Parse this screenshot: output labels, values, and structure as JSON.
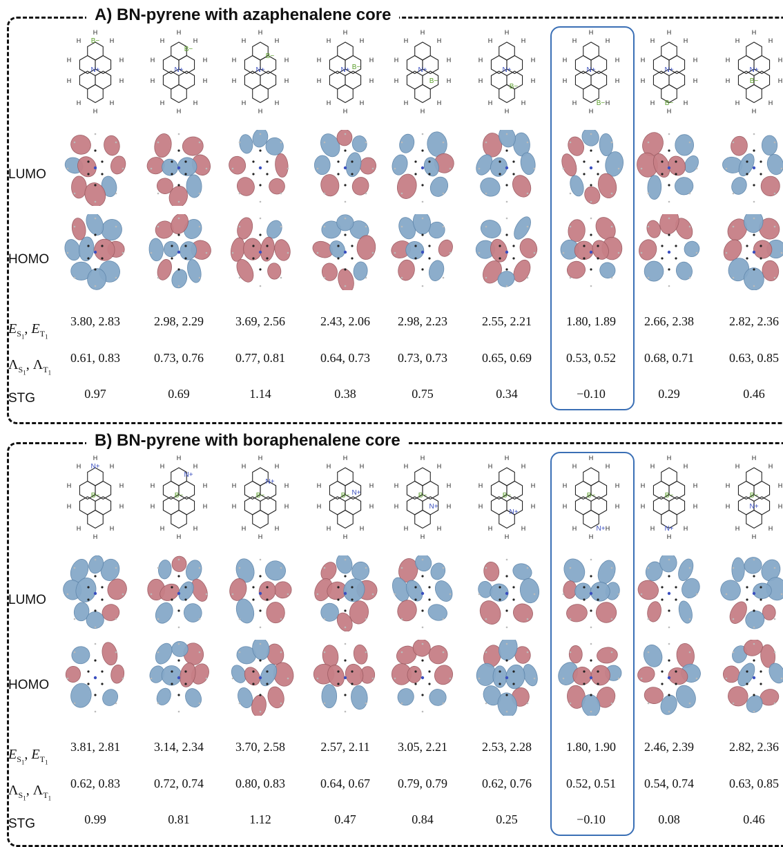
{
  "panels": [
    {
      "title": "A) BN-pyrene with azaphenalene core",
      "row_labels": {
        "lumo": "LUMO",
        "homo": "HOMO",
        "energy": "E",
        "energy_s": "S",
        "energy_t": "T",
        "lambda": "Λ",
        "lambda_s": "S",
        "lambda_t": "T",
        "stg": "STG",
        "sub1": "1"
      },
      "charges": {
        "N": "N",
        "B": "B",
        "plus": "+",
        "minus": "−",
        "H": "H"
      },
      "columns": [
        {
          "energies": "3.80, 2.83",
          "lambdas": "0.61, 0.83",
          "stg": "0.97"
        },
        {
          "energies": "2.98, 2.29",
          "lambdas": "0.73, 0.76",
          "stg": "0.69"
        },
        {
          "energies": "3.69, 2.56",
          "lambdas": "0.77, 0.81",
          "stg": "1.14"
        },
        {
          "energies": "2.43, 2.06",
          "lambdas": "0.64, 0.73",
          "stg": "0.38"
        },
        {
          "energies": "2.98, 2.23",
          "lambdas": "0.73, 0.73",
          "stg": "0.75"
        },
        {
          "energies": "2.55, 2.21",
          "lambdas": "0.65, 0.69",
          "stg": "0.34"
        },
        {
          "energies": "1.80, 1.89",
          "lambdas": "0.53, 0.52",
          "stg": "−0.10"
        },
        {
          "energies": "2.66, 2.38",
          "lambdas": "0.68, 0.71",
          "stg": "0.29"
        },
        {
          "energies": "2.82, 2.36",
          "lambdas": "0.63, 0.85",
          "stg": "0.46"
        }
      ]
    },
    {
      "title": "B) BN-pyrene with boraphenalene core",
      "row_labels": {
        "lumo": "LUMO",
        "homo": "HOMO",
        "energy": "E",
        "energy_s": "S",
        "energy_t": "T",
        "lambda": "Λ",
        "lambda_s": "S",
        "lambda_t": "T",
        "stg": "STG",
        "sub1": "1"
      },
      "charges": {
        "N": "N",
        "B": "B",
        "plus": "+",
        "minus": "−",
        "H": "H"
      },
      "columns": [
        {
          "energies": "3.81, 2.81",
          "lambdas": "0.62, 0.83",
          "stg": "0.99"
        },
        {
          "energies": "3.14, 2.34",
          "lambdas": "0.72, 0.74",
          "stg": "0.81"
        },
        {
          "energies": "3.70, 2.58",
          "lambdas": "0.80, 0.83",
          "stg": "1.12"
        },
        {
          "energies": "2.57, 2.11",
          "lambdas": "0.64, 0.67",
          "stg": "0.47"
        },
        {
          "energies": "3.05, 2.21",
          "lambdas": "0.79, 0.79",
          "stg": "0.84"
        },
        {
          "energies": "2.53, 2.28",
          "lambdas": "0.62, 0.76",
          "stg": "0.25"
        },
        {
          "energies": "1.80, 1.90",
          "lambdas": "0.52, 0.51",
          "stg": "−0.10"
        },
        {
          "energies": "2.46, 2.39",
          "lambdas": "0.54, 0.74",
          "stg": "0.08"
        },
        {
          "energies": "2.82, 2.36",
          "lambdas": "0.63, 0.85",
          "stg": "0.46"
        }
      ]
    }
  ],
  "highlight_column": 6,
  "colors": {
    "positive_lobe": "#c77f86",
    "negative_lobe": "#86a9c9",
    "boron": "#5a9e2a",
    "nitrogen": "#3a4fbf",
    "highlight": "#3a6fb5"
  }
}
